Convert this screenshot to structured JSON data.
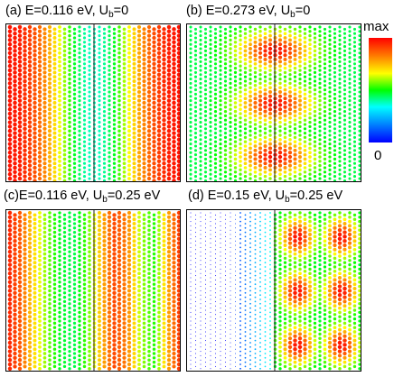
{
  "panels": [
    {
      "id": "a",
      "label": "(a)",
      "energy": "E=0.116 eV",
      "bias_prefix": "U",
      "bias_sub": "b",
      "bias_value": "=0"
    },
    {
      "id": "b",
      "label": "(b)",
      "energy": "E=0.273 eV",
      "bias_prefix": "U",
      "bias_sub": "b",
      "bias_value": "=0"
    },
    {
      "id": "c",
      "label": "(c)",
      "energy": "E=0.116 eV",
      "bias_prefix": "U",
      "bias_sub": "b",
      "bias_value": "=0.25 eV"
    },
    {
      "id": "d",
      "label": "(d)",
      "energy": "E=0.15 eV",
      "bias_prefix": "U",
      "bias_sub": "b",
      "bias_value": "=0.25 eV"
    }
  ],
  "colorbar": {
    "max_label": "max",
    "min_label": "0",
    "colors": [
      "#ff0000",
      "#ff7a00",
      "#ffff00",
      "#00ff00",
      "#00ffff",
      "#0080ff",
      "#0000ff"
    ]
  },
  "chart_data": [
    {
      "type": "heatmap",
      "panel": "a",
      "pattern": "vertical stripes: high at edges, low at center; symmetric",
      "columns": 14,
      "profile": [
        0.98,
        0.96,
        0.9,
        0.8,
        0.65,
        0.48,
        0.38,
        0.38,
        0.48,
        0.65,
        0.8,
        0.9,
        0.96,
        0.98
      ]
    },
    {
      "type": "heatmap",
      "panel": "b",
      "pattern": "three bright lobes stacked vertically in the center; green background",
      "rows": 3,
      "background_level": 0.45,
      "peak_level": 0.98
    },
    {
      "type": "heatmap",
      "panel": "c",
      "pattern": "vertical stripes; asymmetric oscillating, high at edges",
      "columns": 14,
      "profile": [
        0.97,
        0.88,
        0.72,
        0.58,
        0.48,
        0.45,
        0.55,
        0.75,
        0.9,
        0.82,
        0.6,
        0.52,
        0.78,
        0.95
      ]
    },
    {
      "type": "heatmap",
      "panel": "d",
      "pattern": "left half near zero (sparse dots), right half bright lobes in 3 rows x 2 columns",
      "rows": 3,
      "lobe_columns": 2,
      "left_level": 0.0,
      "peak_level": 0.98
    }
  ]
}
